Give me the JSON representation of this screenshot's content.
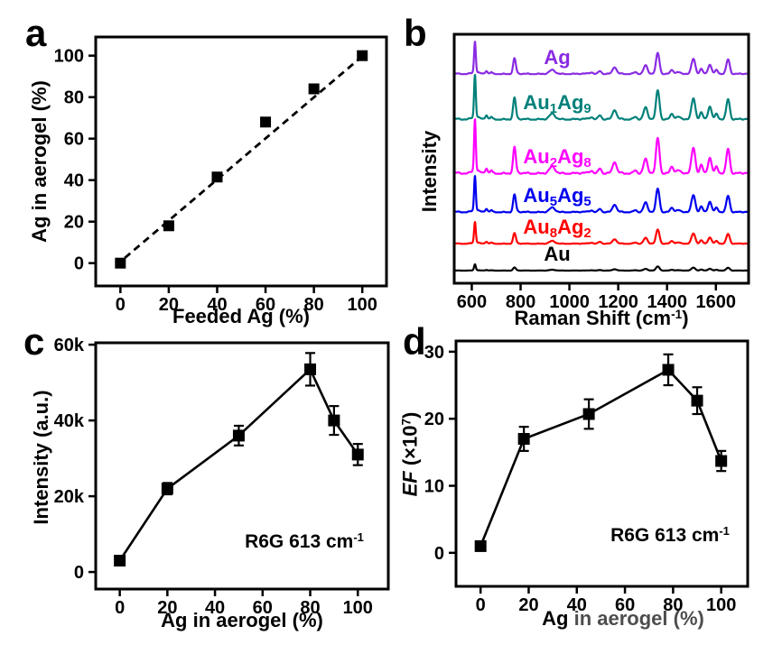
{
  "figure": {
    "background": "#ffffff",
    "text_color": "#000000"
  },
  "panels": {
    "a": {
      "letter": "a",
      "xlabel": "Feeded Ag (%)",
      "ylabel": "Ag in aerogel (%)"
    },
    "b": {
      "letter": "b",
      "xlabel_pre": "Raman Shift (cm",
      "xlabel_sup": "-1",
      "xlabel_post": ")",
      "ylabel": "Intensity"
    },
    "c": {
      "letter": "c",
      "xlabel": "Ag in aerogel (%)",
      "ylabel": "Intensity (a.u.)",
      "annotation_pre": "R6G 613 cm",
      "annotation_sup": "-1"
    },
    "d": {
      "letter": "d",
      "xlabel_pre": "Ag ",
      "xlabel_rest": "in aerogel (%)",
      "ylabel_italic": "EF",
      "ylabel_pre": " (×10",
      "ylabel_sup": "7",
      "ylabel_post": ")",
      "annotation_pre": "R6G 613 cm",
      "annotation_sup": "-1"
    }
  },
  "chart_data": [
    {
      "id": "a",
      "type": "scatter",
      "title": "",
      "xlabel": "Feeded Ag (%)",
      "ylabel": "Ag in aerogel (%)",
      "x": [
        0,
        20,
        40,
        60,
        80,
        100
      ],
      "y": [
        0,
        18,
        41.5,
        68,
        84,
        100
      ],
      "trendline": {
        "style": "dashed",
        "x1": 1.8,
        "y1": 2.5,
        "x2": 100.8,
        "y2": 100.5
      },
      "xlim": [
        -10.2,
        110
      ],
      "ylim": [
        -11,
        109
      ],
      "xticks": [
        0,
        20,
        40,
        60,
        80,
        100
      ],
      "xtick_labels": [
        "0",
        "20",
        "40",
        "60",
        "80",
        "100"
      ],
      "yticks": [
        0,
        20,
        40,
        60,
        80,
        100
      ],
      "ytick_labels": [
        "0",
        "20",
        "40",
        "60",
        "80",
        "100"
      ],
      "marker": "square",
      "color": "#000000",
      "grid": false,
      "box": {
        "l": 106,
        "t": 41,
        "r": 428,
        "b": 317
      }
    },
    {
      "id": "b",
      "type": "line",
      "variant": "raman-spectra",
      "xlabel": "Raman Shift (cm-1)",
      "ylabel": "Intensity",
      "xlim": [
        528,
        1734
      ],
      "xticks": [
        600,
        800,
        1000,
        1200,
        1400,
        1600
      ],
      "xtick_labels": [
        "600",
        "800",
        "1000",
        "1200",
        "1400",
        "1600"
      ],
      "grid": false,
      "peaks_cm1_sigma_relheight": [
        [
          613,
          5,
          1.0
        ],
        [
          613,
          18,
          0.07
        ],
        [
          660,
          6,
          0.1
        ],
        [
          680,
          5,
          0.05
        ],
        [
          775,
          8,
          0.5
        ],
        [
          930,
          16,
          0.12
        ],
        [
          1090,
          10,
          0.05
        ],
        [
          1125,
          9,
          0.1
        ],
        [
          1185,
          11,
          0.22
        ],
        [
          1270,
          10,
          0.06
        ],
        [
          1312,
          11,
          0.27
        ],
        [
          1362,
          10,
          0.68
        ],
        [
          1420,
          10,
          0.13
        ],
        [
          1445,
          10,
          0.05
        ],
        [
          1508,
          11,
          0.5
        ],
        [
          1540,
          9,
          0.16
        ],
        [
          1575,
          10,
          0.3
        ],
        [
          1603,
          8,
          0.12
        ],
        [
          1650,
          10,
          0.48
        ]
      ],
      "series": [
        {
          "name": "Ag",
          "label_parts": [
            [
              "t",
              "Ag"
            ]
          ],
          "color": "#8A2BE2",
          "baseline": 0.841,
          "amplitude": 0.123
        },
        {
          "name": "Au1Ag9",
          "label_parts": [
            [
              "t",
              "Au"
            ],
            [
              "sub",
              "1"
            ],
            [
              "t",
              "Ag"
            ],
            [
              "sub",
              "9"
            ]
          ],
          "color": "#00807A",
          "baseline": 0.659,
          "amplitude": 0.17
        },
        {
          "name": "Au2Ag8",
          "label_parts": [
            [
              "t",
              "Au"
            ],
            [
              "sub",
              "2"
            ],
            [
              "t",
              "Ag"
            ],
            [
              "sub",
              "8"
            ]
          ],
          "color": "#FF00FF",
          "baseline": 0.442,
          "amplitude": 0.207
        },
        {
          "name": "Au5Ag5",
          "label_parts": [
            [
              "t",
              "Au"
            ],
            [
              "sub",
              "5"
            ],
            [
              "t",
              "Ag"
            ],
            [
              "sub",
              "5"
            ]
          ],
          "color": "#0000EE",
          "baseline": 0.286,
          "amplitude": 0.138
        },
        {
          "name": "Au8Ag2",
          "label_parts": [
            [
              "t",
              "Au"
            ],
            [
              "sub",
              "8"
            ],
            [
              "t",
              "Ag"
            ],
            [
              "sub",
              "2"
            ]
          ],
          "color": "#FF0000",
          "baseline": 0.159,
          "amplitude": 0.083
        },
        {
          "name": "Au",
          "label_parts": [
            [
              "t",
              "Au"
            ]
          ],
          "color": "#000000",
          "baseline": 0.051,
          "amplitude": 0.024
        }
      ],
      "series_label_x_cm1": 950,
      "box": {
        "l": 503,
        "t": 38,
        "r": 829,
        "b": 314
      }
    },
    {
      "id": "c",
      "type": "line",
      "variant": "scatter-line-errorbar",
      "xlabel": "Ag in aerogel (%)",
      "ylabel": "Intensity (a.u.)",
      "annotation": "R6G 613 cm-1",
      "x": [
        0,
        20,
        50,
        80,
        90,
        100
      ],
      "y": [
        3000,
        22000,
        36000,
        53500,
        40000,
        31000
      ],
      "yerr": [
        800,
        1500,
        2600,
        4300,
        3800,
        2800
      ],
      "xlim": [
        -10.1,
        112.8
      ],
      "ylim": [
        -4500,
        60500
      ],
      "xticks": [
        0,
        20,
        40,
        60,
        80,
        100
      ],
      "xtick_labels": [
        "0",
        "20",
        "40",
        "60",
        "80",
        "100"
      ],
      "yticks": [
        0,
        20000,
        40000,
        60000
      ],
      "ytick_labels": [
        "0",
        "20k",
        "40k",
        "60k"
      ],
      "marker": "square",
      "color": "#000000",
      "grid": false,
      "box": {
        "l": 106,
        "t": 380,
        "r": 430,
        "b": 653
      }
    },
    {
      "id": "d",
      "type": "line",
      "variant": "scatter-line-errorbar",
      "xlabel": "Ag in aerogel (%)",
      "ylabel": "EF (x10^7)",
      "annotation": "R6G 613 cm-1",
      "x": [
        0,
        18,
        45,
        78,
        90,
        100
      ],
      "y": [
        1,
        17,
        20.7,
        27.3,
        22.7,
        13.7
      ],
      "yerr": [
        0.5,
        1.8,
        2.2,
        2.3,
        2.0,
        1.5
      ],
      "xlim": [
        -10.2,
        111
      ],
      "ylim": [
        -5,
        31.6
      ],
      "xticks": [
        0,
        20,
        40,
        60,
        80,
        100
      ],
      "xtick_labels": [
        "0",
        "20",
        "40",
        "60",
        "80",
        "100"
      ],
      "yticks": [
        0,
        10,
        20,
        30
      ],
      "ytick_labels": [
        "0",
        "10",
        "20",
        "30"
      ],
      "marker": "square",
      "color": "#000000",
      "grid": false,
      "box": {
        "l": 505,
        "t": 378,
        "r": 828,
        "b": 650
      }
    }
  ]
}
